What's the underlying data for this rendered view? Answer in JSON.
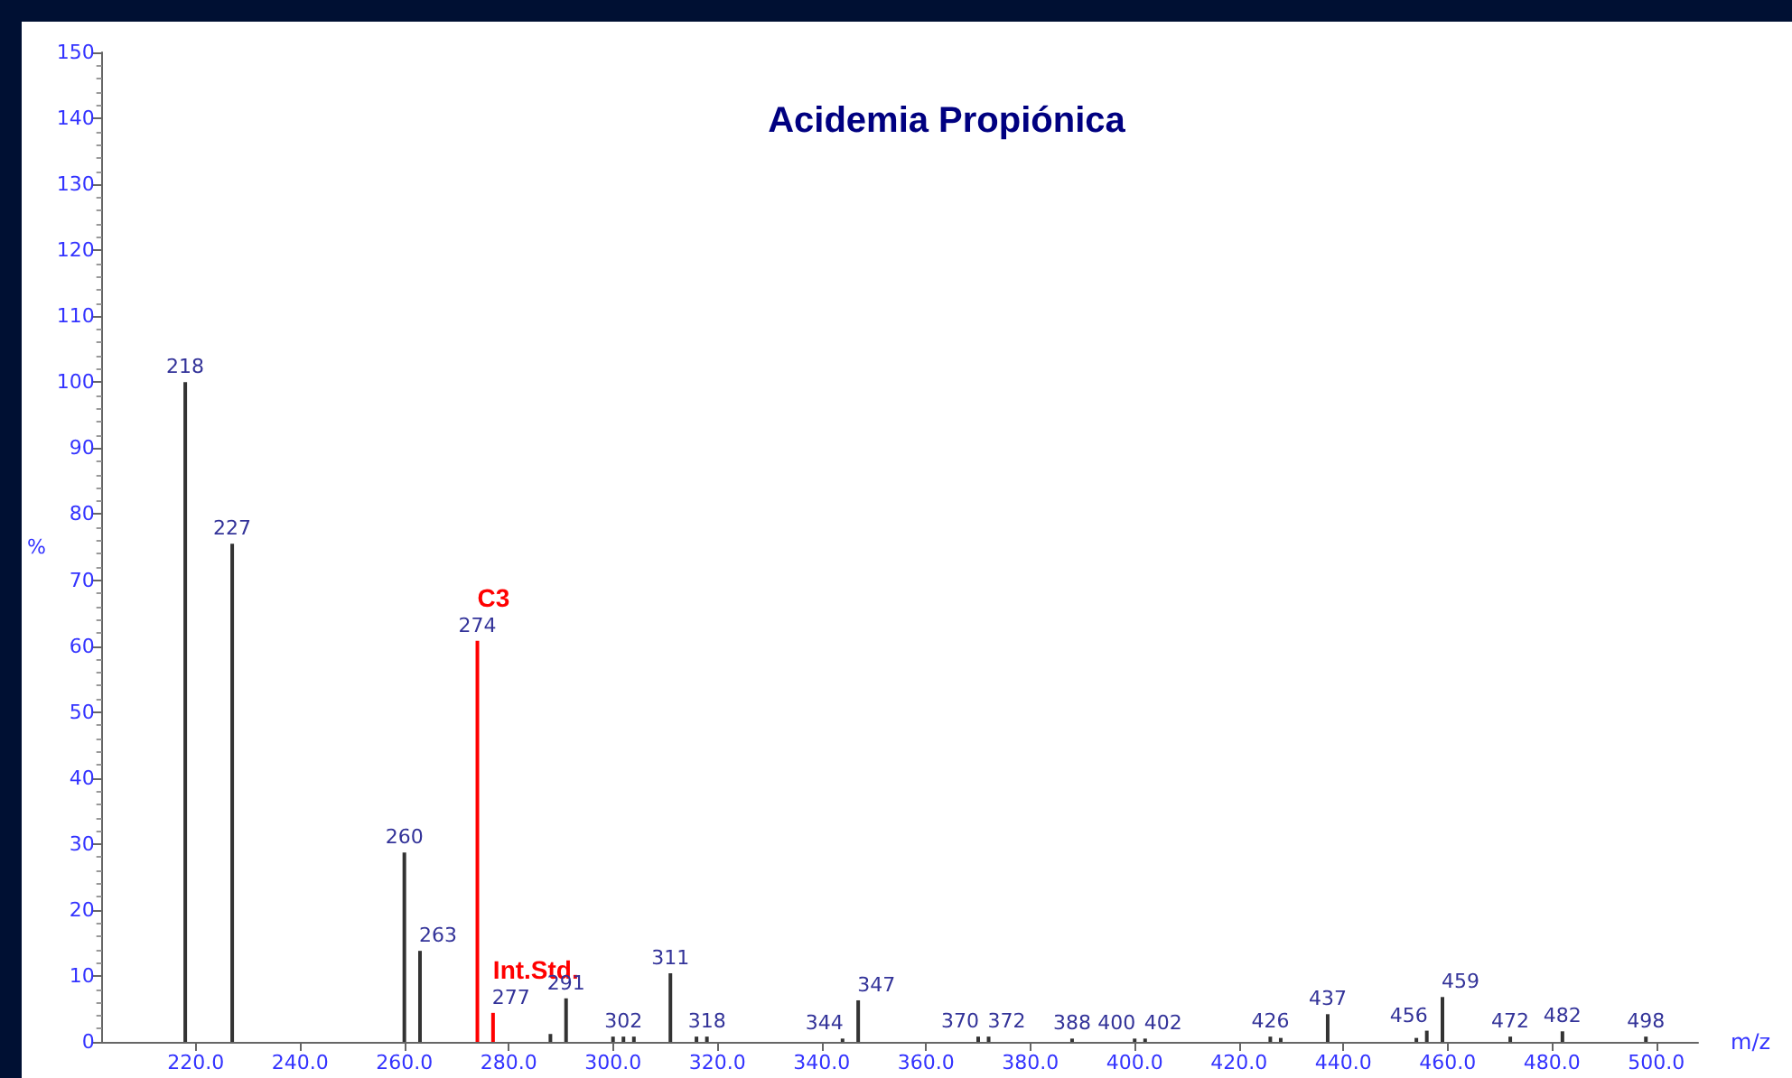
{
  "chart_data": {
    "type": "bar",
    "title": "Acidemia Propiónica",
    "xlabel": "m/z",
    "ylabel": "%",
    "x": [
      218,
      227,
      260,
      263,
      274,
      277,
      288,
      291,
      300,
      302,
      304,
      311,
      316,
      318,
      344,
      347,
      370,
      372,
      388,
      400,
      402,
      426,
      428,
      437,
      454,
      456,
      459,
      472,
      482,
      498
    ],
    "values": [
      100,
      75.5,
      28.7,
      13.8,
      60.8,
      4.4,
      1.2,
      6.6,
      0.8,
      0.8,
      0.8,
      10.4,
      0.8,
      0.8,
      0.5,
      6.3,
      0.8,
      0.8,
      0.5,
      0.5,
      0.5,
      0.8,
      0.6,
      4.2,
      0.6,
      1.7,
      6.8,
      0.8,
      1.6,
      0.8
    ],
    "colors": [
      "#333333",
      "#333333",
      "#333333",
      "#333333",
      "#ff0000",
      "#ff0000",
      "#333333",
      "#333333",
      "#333333",
      "#333333",
      "#333333",
      "#333333",
      "#333333",
      "#333333",
      "#333333",
      "#333333",
      "#333333",
      "#333333",
      "#333333",
      "#333333",
      "#333333",
      "#333333",
      "#333333",
      "#333333",
      "#333333",
      "#333333",
      "#333333",
      "#333333",
      "#333333",
      "#333333"
    ],
    "annotations": [
      {
        "text": "218",
        "x": 218,
        "y": 100
      },
      {
        "text": "227",
        "x": 227,
        "y": 75.5
      },
      {
        "text": "260",
        "x": 260,
        "y": 28.7
      },
      {
        "text": "263",
        "x": 263,
        "y": 13.8
      },
      {
        "text": "274",
        "x": 274,
        "y": 60.8
      },
      {
        "text": "C3",
        "x": 274,
        "y": 60.8
      },
      {
        "text": "277",
        "x": 277,
        "y": 4.4
      },
      {
        "text": "Int.Std.",
        "x": 277,
        "y": 4.4
      },
      {
        "text": "291",
        "x": 291,
        "y": 6.6
      },
      {
        "text": "302",
        "x": 302,
        "y": 0.8
      },
      {
        "text": "311",
        "x": 311,
        "y": 10.4
      },
      {
        "text": "318",
        "x": 318,
        "y": 0.8
      },
      {
        "text": "344",
        "x": 344,
        "y": 0.5
      },
      {
        "text": "347",
        "x": 347,
        "y": 6.3
      },
      {
        "text": "370",
        "x": 370,
        "y": 0.8
      },
      {
        "text": "372",
        "x": 372,
        "y": 0.8
      },
      {
        "text": "388",
        "x": 388,
        "y": 0.5
      },
      {
        "text": "400",
        "x": 400,
        "y": 0.5
      },
      {
        "text": "402",
        "x": 402,
        "y": 0.5
      },
      {
        "text": "426",
        "x": 426,
        "y": 0.8
      },
      {
        "text": "437",
        "x": 437,
        "y": 4.2
      },
      {
        "text": "456",
        "x": 456,
        "y": 1.7
      },
      {
        "text": "459",
        "x": 459,
        "y": 6.8
      },
      {
        "text": "472",
        "x": 472,
        "y": 0.8
      },
      {
        "text": "482",
        "x": 482,
        "y": 1.6
      },
      {
        "text": "498",
        "x": 498,
        "y": 0.8
      }
    ],
    "xlim": [
      202,
      508
    ],
    "xticks": [
      {
        "value": 220,
        "label": "220.0"
      },
      {
        "value": 240,
        "label": "240.0"
      },
      {
        "value": 260,
        "label": "260.0"
      },
      {
        "value": 280,
        "label": "280.0"
      },
      {
        "value": 300,
        "label": "300.0"
      },
      {
        "value": 320,
        "label": "320.0"
      },
      {
        "value": 340,
        "label": "340.0"
      },
      {
        "value": 360,
        "label": "360.0"
      },
      {
        "value": 380,
        "label": "380.0"
      },
      {
        "value": 400,
        "label": "400.0"
      },
      {
        "value": 420,
        "label": "420.0"
      },
      {
        "value": 440,
        "label": "440.0"
      },
      {
        "value": 460,
        "label": "460.0"
      },
      {
        "value": 480,
        "label": "480.0"
      },
      {
        "value": 500,
        "label": "500.0"
      }
    ],
    "ylim": [
      0,
      150
    ],
    "yticks": [
      0,
      10,
      20,
      30,
      40,
      50,
      60,
      70,
      80,
      90,
      100,
      110,
      120,
      130,
      140,
      150
    ],
    "grid": false
  }
}
